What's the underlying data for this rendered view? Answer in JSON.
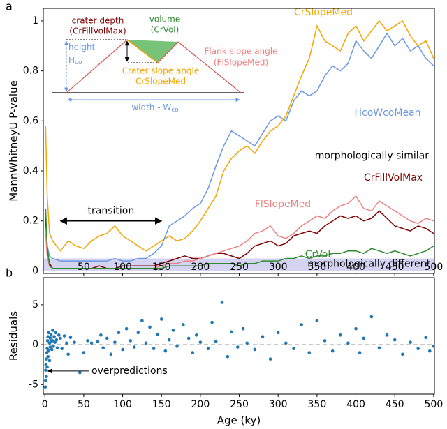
{
  "chart_data": [
    {
      "type": "line",
      "panel_label": "a",
      "ylabel": "MannWhitneyU P-value",
      "x": [
        1,
        3,
        6,
        10,
        20,
        30,
        40,
        50,
        60,
        70,
        80,
        90,
        100,
        110,
        120,
        130,
        140,
        150,
        160,
        170,
        180,
        190,
        200,
        210,
        220,
        230,
        240,
        250,
        260,
        270,
        280,
        290,
        300,
        310,
        320,
        330,
        340,
        350,
        360,
        370,
        380,
        390,
        400,
        410,
        420,
        430,
        440,
        450,
        460,
        470,
        480,
        490,
        500
      ],
      "series": [
        {
          "name": "CrSlopeMed",
          "color": "#f5a500",
          "values": [
            0.58,
            0.3,
            0.15,
            0.12,
            0.08,
            0.12,
            0.1,
            0.09,
            0.12,
            0.14,
            0.15,
            0.18,
            0.14,
            0.12,
            0.1,
            0.08,
            0.1,
            0.12,
            0.14,
            0.12,
            0.13,
            0.16,
            0.2,
            0.25,
            0.3,
            0.4,
            0.45,
            0.48,
            0.5,
            0.47,
            0.52,
            0.56,
            0.58,
            0.62,
            0.7,
            0.78,
            0.85,
            0.98,
            0.92,
            0.9,
            0.88,
            0.95,
            0.98,
            0.92,
            0.96,
            1.0,
            0.96,
            0.98,
            1.0,
            0.94,
            0.9,
            0.92,
            0.85
          ]
        },
        {
          "name": "HcoWcoMean",
          "color": "#6a98e0",
          "values": [
            0.2,
            0.1,
            0.06,
            0.05,
            0.04,
            0.04,
            0.04,
            0.04,
            0.04,
            0.04,
            0.04,
            0.05,
            0.04,
            0.04,
            0.05,
            0.05,
            0.07,
            0.1,
            0.18,
            0.2,
            0.22,
            0.25,
            0.27,
            0.33,
            0.42,
            0.5,
            0.56,
            0.54,
            0.52,
            0.5,
            0.55,
            0.6,
            0.62,
            0.6,
            0.68,
            0.72,
            0.7,
            0.72,
            0.78,
            0.82,
            0.8,
            0.83,
            0.92,
            0.88,
            0.85,
            0.9,
            0.95,
            0.9,
            0.93,
            0.88,
            0.9,
            0.85,
            0.82
          ]
        },
        {
          "name": "CrFillVolMax",
          "color": "#800000",
          "values": [
            0.22,
            0.08,
            0.03,
            0.01,
            0.01,
            0.01,
            0.01,
            0.01,
            0.01,
            0.02,
            0.01,
            0.01,
            0.02,
            0.02,
            0.02,
            0.02,
            0.02,
            0.03,
            0.04,
            0.05,
            0.06,
            0.05,
            0.05,
            0.06,
            0.07,
            0.07,
            0.06,
            0.05,
            0.07,
            0.1,
            0.11,
            0.12,
            0.1,
            0.11,
            0.14,
            0.15,
            0.16,
            0.15,
            0.18,
            0.2,
            0.22,
            0.21,
            0.22,
            0.2,
            0.21,
            0.24,
            0.21,
            0.18,
            0.17,
            0.16,
            0.18,
            0.17,
            0.15
          ]
        },
        {
          "name": "FlSlopeMed",
          "color": "#f08080",
          "values": [
            0.15,
            0.06,
            0.02,
            0.01,
            0.01,
            0.01,
            0.01,
            0.01,
            0.01,
            0.01,
            0.01,
            0.01,
            0.01,
            0.01,
            0.01,
            0.01,
            0.01,
            0.02,
            0.03,
            0.03,
            0.04,
            0.04,
            0.05,
            0.06,
            0.07,
            0.08,
            0.09,
            0.1,
            0.12,
            0.15,
            0.16,
            0.18,
            0.14,
            0.13,
            0.15,
            0.18,
            0.2,
            0.22,
            0.21,
            0.24,
            0.26,
            0.27,
            0.3,
            0.25,
            0.24,
            0.28,
            0.26,
            0.24,
            0.22,
            0.2,
            0.19,
            0.21,
            0.2
          ]
        },
        {
          "name": "CrVol",
          "color": "#2e8b2e",
          "values": [
            0.25,
            0.1,
            0.02,
            0.01,
            0.01,
            0.01,
            0.01,
            0.01,
            0.01,
            0.01,
            0.01,
            0.01,
            0.01,
            0.01,
            0.01,
            0.01,
            0.01,
            0.01,
            0.02,
            0.02,
            0.02,
            0.02,
            0.02,
            0.03,
            0.03,
            0.03,
            0.03,
            0.02,
            0.03,
            0.03,
            0.04,
            0.04,
            0.04,
            0.05,
            0.05,
            0.06,
            0.05,
            0.06,
            0.06,
            0.07,
            0.07,
            0.08,
            0.08,
            0.07,
            0.09,
            0.08,
            0.07,
            0.08,
            0.07,
            0.06,
            0.07,
            0.08,
            0.1
          ]
        }
      ],
      "xlim": [
        -2,
        501
      ],
      "ylim": [
        -0.01,
        1.05
      ],
      "xticks": [
        50,
        100,
        150,
        200,
        250,
        300,
        350,
        400,
        450,
        500
      ],
      "yticks": [
        0,
        0.2,
        0.4,
        0.6,
        0.8,
        1
      ],
      "similar_label": "morphologically similar",
      "band": {
        "label": "morphologically different",
        "range": [
          0,
          0.05
        ],
        "color": "#d4d4f2"
      },
      "transition": {
        "label": "transition",
        "range": [
          20,
          150
        ],
        "y": 0.2
      }
    },
    {
      "type": "scatter",
      "panel_label": "b",
      "xlabel": "Age (ky)",
      "ylabel": "Residuals",
      "color": "#1f77b4",
      "x": [
        0.5,
        1,
        1,
        1.5,
        2,
        2,
        2.5,
        3,
        3,
        3.5,
        4,
        4,
        5,
        5,
        6,
        6,
        7,
        7,
        8,
        8,
        9,
        10,
        10,
        11,
        12,
        13,
        14,
        15,
        16,
        18,
        20,
        22,
        25,
        28,
        30,
        33,
        38,
        45,
        50,
        55,
        60,
        68,
        72,
        75,
        80,
        85,
        90,
        95,
        100,
        105,
        110,
        115,
        120,
        125,
        130,
        135,
        140,
        145,
        150,
        155,
        160,
        165,
        170,
        178,
        185,
        190,
        195,
        200,
        210,
        215,
        220,
        228,
        235,
        240,
        248,
        255,
        260,
        270,
        280,
        290,
        300,
        310,
        320,
        330,
        340,
        350,
        360,
        370,
        380,
        390,
        400,
        405,
        410,
        420,
        430,
        440,
        450,
        460,
        470,
        480,
        490,
        495,
        500
      ],
      "values": [
        -5.3,
        -4.5,
        -3.2,
        -2.5,
        -1.8,
        -4.0,
        -1.0,
        -0.5,
        -2.8,
        0.5,
        -1.5,
        1.0,
        -0.8,
        1.5,
        0.2,
        -2.0,
        0.8,
        -0.3,
        1.2,
        0.4,
        -0.6,
        1.8,
        0.5,
        -0.2,
        1.0,
        0.3,
        1.5,
        0.6,
        -0.4,
        1.2,
        0.8,
        -0.5,
        1.1,
        0.2,
        -1.2,
        0.9,
        0.3,
        -3.5,
        -1.0,
        0.5,
        0.2,
        0.4,
        1.2,
        -0.4,
        0.8,
        -1.2,
        0.3,
        1.5,
        -0.6,
        2.0,
        0.5,
        -0.3,
        1.5,
        3.0,
        0.2,
        2.2,
        -0.5,
        1.3,
        3.2,
        -0.8,
        0.6,
        1.8,
        -0.2,
        2.5,
        0.8,
        -1.0,
        1.2,
        0.3,
        -0.5,
        2.8,
        0.4,
        5.3,
        -1.5,
        1.6,
        -0.3,
        2.0,
        0.2,
        -0.6,
        1.0,
        -1.8,
        1.5,
        0.2,
        -0.5,
        2.5,
        -1.0,
        3.0,
        0.5,
        -0.8,
        1.2,
        0.2,
        2.0,
        -1.0,
        0.8,
        3.5,
        -0.4,
        1.2,
        0.6,
        -1.2,
        0.3,
        -0.5,
        0.9,
        -0.8,
        -0.2
      ],
      "xlim": [
        -2,
        501
      ],
      "ylim": [
        -6.2,
        8.4
      ],
      "xticks": [
        0,
        50,
        100,
        150,
        200,
        250,
        300,
        350,
        400,
        450,
        500
      ],
      "yticks": [
        -5,
        0,
        5
      ],
      "reference_line": 0,
      "annotation": {
        "label": "overpredictions",
        "x": 2,
        "y": -3.3
      }
    }
  ],
  "inset": {
    "depth": "crater depth",
    "depth_name": "(CrFillVolMax)",
    "volume": "volume",
    "volume_name": "(CrVol)",
    "height": "height",
    "height_symbol": "H",
    "height_sub": "co",
    "flank": "Flank slope angle",
    "flank_name": "(FlSlopeMed)",
    "crater_slope": "Crater slope angle",
    "crater_slope_name": "CrSlopeMed",
    "width": "width - W",
    "width_sub": "co"
  }
}
